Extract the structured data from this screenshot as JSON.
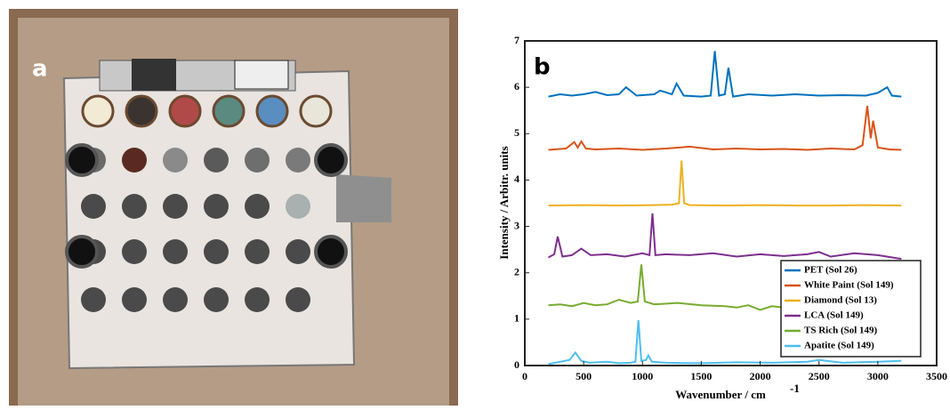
{
  "photo_label": "a",
  "chart_data": {
    "type": "line",
    "panel_label": "b",
    "x_label": "Wavenumber / cm",
    "x_label_superscript": "-1",
    "y_label": "Intensity / Arbitr. units",
    "xlim": [
      0,
      3500
    ],
    "xticks": [
      0,
      500,
      1000,
      1500,
      2000,
      2500,
      3000,
      3500
    ],
    "ylim": [
      0,
      7
    ],
    "yticks": [
      0,
      1,
      2,
      3,
      4,
      5,
      6,
      7
    ],
    "legend": "lower right",
    "series": [
      {
        "name": "PET (Sol 26)",
        "color": "#0072bd",
        "x": [
          200,
          300,
          400,
          500,
          600,
          700,
          800,
          860,
          950,
          1100,
          1150,
          1250,
          1290,
          1350,
          1500,
          1580,
          1615,
          1650,
          1700,
          1730,
          1770,
          1900,
          2100,
          2300,
          2500,
          2700,
          2900,
          3000,
          3080,
          3120,
          3200
        ],
        "values": [
          5.8,
          5.85,
          5.82,
          5.85,
          5.9,
          5.83,
          5.85,
          6.0,
          5.82,
          5.85,
          5.93,
          5.85,
          6.08,
          5.82,
          5.8,
          5.82,
          6.78,
          5.82,
          5.85,
          6.42,
          5.8,
          5.85,
          5.82,
          5.85,
          5.82,
          5.83,
          5.82,
          5.88,
          6.0,
          5.82,
          5.8
        ]
      },
      {
        "name": "White Paint (Sol 149)",
        "color": "#d95319",
        "x": [
          200,
          350,
          420,
          450,
          480,
          520,
          600,
          800,
          1000,
          1200,
          1400,
          1600,
          1800,
          2000,
          2200,
          2400,
          2600,
          2800,
          2870,
          2910,
          2940,
          2960,
          3000,
          3100,
          3200
        ],
        "values": [
          4.65,
          4.68,
          4.82,
          4.7,
          4.83,
          4.68,
          4.66,
          4.68,
          4.65,
          4.68,
          4.72,
          4.66,
          4.68,
          4.66,
          4.67,
          4.65,
          4.68,
          4.66,
          4.75,
          5.6,
          4.9,
          5.28,
          4.7,
          4.66,
          4.65
        ]
      },
      {
        "name": "Diamond (Sol 13)",
        "color": "#edb120",
        "x": [
          200,
          500,
          800,
          1100,
          1250,
          1310,
          1332,
          1355,
          1400,
          1700,
          2000,
          2300,
          2600,
          2900,
          3200
        ],
        "values": [
          3.45,
          3.46,
          3.45,
          3.46,
          3.47,
          3.5,
          4.42,
          3.5,
          3.46,
          3.45,
          3.46,
          3.45,
          3.45,
          3.46,
          3.45
        ]
      },
      {
        "name": "LCA (Sol 149)",
        "color": "#7e2f8e",
        "x": [
          200,
          250,
          280,
          320,
          400,
          480,
          560,
          700,
          850,
          1000,
          1060,
          1085,
          1110,
          1200,
          1400,
          1600,
          1800,
          2000,
          2200,
          2400,
          2500,
          2600,
          2800,
          3000,
          3200
        ],
        "values": [
          2.33,
          2.4,
          2.78,
          2.35,
          2.38,
          2.52,
          2.38,
          2.4,
          2.35,
          2.42,
          2.38,
          3.28,
          2.38,
          2.4,
          2.38,
          2.42,
          2.35,
          2.4,
          2.36,
          2.4,
          2.45,
          2.35,
          2.42,
          2.38,
          2.3
        ]
      },
      {
        "name": "TS Rich (Sol 149)",
        "color": "#77ac30",
        "x": [
          200,
          300,
          400,
          500,
          600,
          700,
          800,
          900,
          960,
          990,
          1020,
          1100,
          1300,
          1500,
          1700,
          1800,
          1900,
          2000,
          2100,
          2200,
          2300,
          2500,
          2800,
          3000,
          3200
        ],
        "values": [
          1.3,
          1.32,
          1.28,
          1.35,
          1.3,
          1.32,
          1.42,
          1.35,
          1.38,
          2.18,
          1.38,
          1.32,
          1.35,
          1.3,
          1.28,
          1.25,
          1.3,
          1.2,
          1.28,
          1.25,
          1.28,
          1.27,
          1.28,
          1.26,
          1.27
        ]
      },
      {
        "name": "Apatite (Sol 149)",
        "color": "#4dbeee",
        "x": [
          200,
          300,
          380,
          430,
          480,
          550,
          700,
          800,
          900,
          940,
          965,
          990,
          1030,
          1050,
          1080,
          1200,
          1500,
          1800,
          2100,
          2400,
          2500,
          2700,
          3000,
          3200
        ],
        "values": [
          0.03,
          0.08,
          0.12,
          0.28,
          0.1,
          0.06,
          0.08,
          0.05,
          0.06,
          0.08,
          0.98,
          0.1,
          0.12,
          0.22,
          0.08,
          0.06,
          0.05,
          0.07,
          0.06,
          0.08,
          0.12,
          0.06,
          0.08,
          0.1
        ]
      }
    ]
  }
}
